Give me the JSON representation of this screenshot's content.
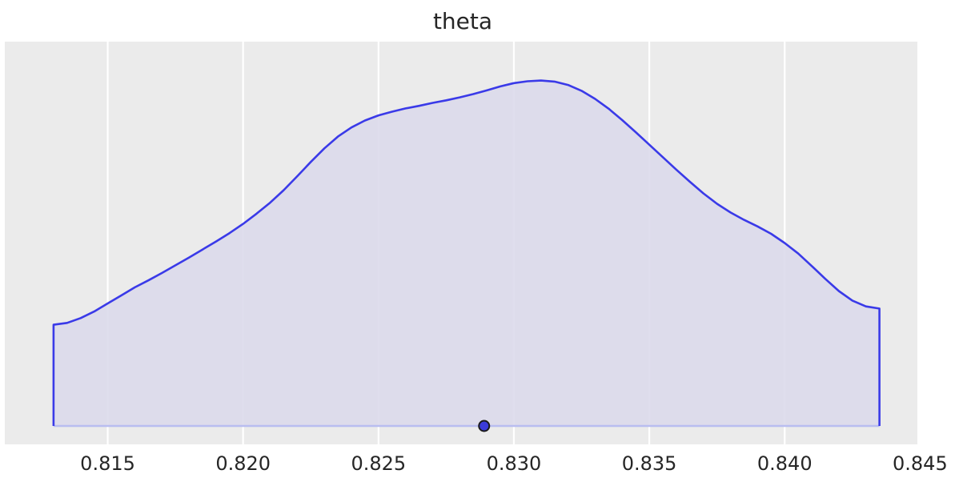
{
  "chart_data": {
    "type": "area",
    "title": "theta",
    "xlabel": "",
    "ylabel": "",
    "xlim": [
      0.8112,
      0.8449
    ],
    "xticks": [
      0.815,
      0.82,
      0.825,
      0.83,
      0.835,
      0.84,
      0.845
    ],
    "xtick_labels": [
      "0.815",
      "0.820",
      "0.825",
      "0.830",
      "0.835",
      "0.840",
      "0.845"
    ],
    "ylim": [
      0,
      1.0
    ],
    "y_ticks_shown": false,
    "grid": "vertical",
    "legend": "none",
    "series": [
      {
        "kind": "density",
        "x": [
          0.813,
          0.8135,
          0.814,
          0.8145,
          0.815,
          0.8155,
          0.816,
          0.8165,
          0.817,
          0.8175,
          0.818,
          0.8185,
          0.819,
          0.8195,
          0.82,
          0.8205,
          0.821,
          0.8215,
          0.822,
          0.8225,
          0.823,
          0.8235,
          0.824,
          0.8245,
          0.825,
          0.8255,
          0.826,
          0.8265,
          0.827,
          0.8275,
          0.828,
          0.8285,
          0.829,
          0.8295,
          0.83,
          0.8305,
          0.831,
          0.8315,
          0.832,
          0.8325,
          0.833,
          0.8335,
          0.834,
          0.8345,
          0.835,
          0.8355,
          0.836,
          0.8365,
          0.837,
          0.8375,
          0.838,
          0.8385,
          0.839,
          0.8395,
          0.84,
          0.8405,
          0.841,
          0.8415,
          0.842,
          0.8425,
          0.843,
          0.8435
        ],
        "density": [
          0.276,
          0.281,
          0.294,
          0.312,
          0.334,
          0.356,
          0.378,
          0.397,
          0.417,
          0.438,
          0.459,
          0.481,
          0.503,
          0.526,
          0.551,
          0.579,
          0.609,
          0.643,
          0.681,
          0.72,
          0.757,
          0.789,
          0.814,
          0.833,
          0.847,
          0.857,
          0.866,
          0.873,
          0.881,
          0.888,
          0.896,
          0.905,
          0.915,
          0.926,
          0.935,
          0.94,
          0.942,
          0.939,
          0.93,
          0.914,
          0.892,
          0.865,
          0.834,
          0.801,
          0.767,
          0.733,
          0.699,
          0.666,
          0.634,
          0.606,
          0.582,
          0.562,
          0.544,
          0.524,
          0.499,
          0.47,
          0.436,
          0.401,
          0.368,
          0.342,
          0.326,
          0.32
        ],
        "line_color": "#3a3ae8",
        "fill_color": "#dcdaeb"
      }
    ],
    "point_estimate": {
      "x": 0.8289,
      "marker_color": "#3b3bd9"
    },
    "colors": {
      "panel_background": "#ebebeb",
      "grid": "#ffffff",
      "baseline": "#b9bdf0",
      "text": "#262626"
    }
  }
}
